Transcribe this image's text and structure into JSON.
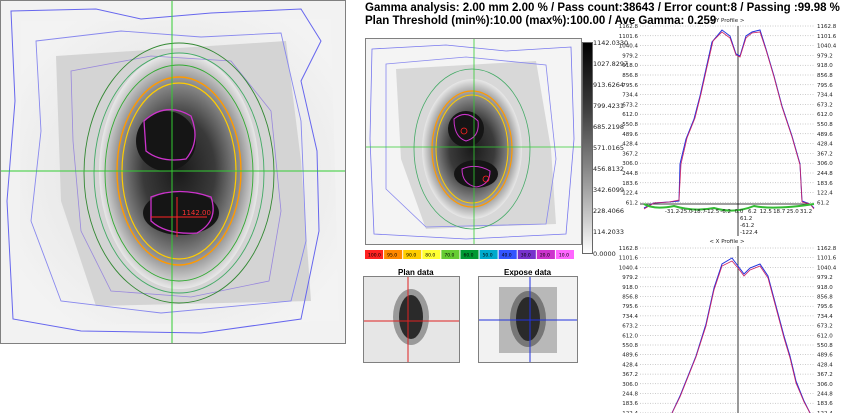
{
  "header": {
    "line1": "Gamma analysis: 2.00 mm   2.00 % / Pass count:38643 / Error count:8 / Passing :99.98 %",
    "line2": "Plan Threshold (min%):10.00  (max%):100.00 / Ave Gamma:    0.259"
  },
  "colorbar": {
    "labels": [
      "1142.0330",
      "1027.8297",
      "913.6264",
      "799.4231",
      "685.2198",
      "571.0165",
      "456.8132",
      "342.6099",
      "228.4066",
      "114.2033",
      "0.0000"
    ]
  },
  "swatches": {
    "labels": [
      "100.0",
      "95.0",
      "90.0",
      "80.0",
      "70.0",
      "60.0",
      "50.0",
      "40.0",
      "30.0",
      "20.0",
      "10.0"
    ],
    "colors": [
      "#ff2222",
      "#ff8800",
      "#ffcc00",
      "#ffff33",
      "#66cc33",
      "#009933",
      "#00aacc",
      "#3355ff",
      "#7733cc",
      "#cc33cc",
      "#ff66ff"
    ]
  },
  "thumbs": {
    "plan_title": "Plan data",
    "expose_title": "Expose data"
  },
  "main_image": {
    "marker_label": "1142.00"
  },
  "y_profile": {
    "title": "< Y Profile >",
    "left_ticks": [
      "1162.8",
      "1101.6",
      "1040.4",
      "979.2",
      "918.0",
      "856.8",
      "795.6",
      "734.4",
      "673.2",
      "612.0",
      "550.8",
      "489.6",
      "428.4",
      "367.2",
      "306.0",
      "244.8",
      "183.6",
      "122.4",
      "61.2"
    ],
    "right_ticks": [
      "1162.8",
      "1101.6",
      "1040.4",
      "979.2",
      "918.0",
      "856.8",
      "795.6",
      "734.4",
      "673.2",
      "612.0",
      "550.8",
      "489.6",
      "428.4",
      "367.2",
      "306.0",
      "244.8",
      "183.6",
      "122.4",
      "61.2"
    ],
    "x_ticks": [
      "-31.2",
      "-25.0",
      "-18.7",
      "-12.5",
      "-6.2",
      "0.0",
      "6.2",
      "12.5",
      "18.7",
      "25.0",
      "31.2"
    ],
    "center_labels": [
      "61.2",
      "-61.2",
      "-122.4"
    ]
  },
  "x_profile": {
    "title": "< X Profile >",
    "left_ticks": [
      "1162.8",
      "1101.6",
      "1040.4",
      "979.2",
      "918.0",
      "856.8",
      "795.6",
      "734.4",
      "673.2",
      "612.0",
      "550.8",
      "489.6",
      "428.4",
      "367.2",
      "306.0",
      "244.8",
      "183.6",
      "122.4"
    ],
    "right_ticks": [
      "1162.8",
      "1101.6",
      "1040.4",
      "979.2",
      "918.0",
      "856.8",
      "795.6",
      "734.4",
      "673.2",
      "612.0",
      "550.8",
      "489.6",
      "428.4",
      "367.2",
      "306.0",
      "244.8",
      "183.6",
      "122.4"
    ]
  }
}
